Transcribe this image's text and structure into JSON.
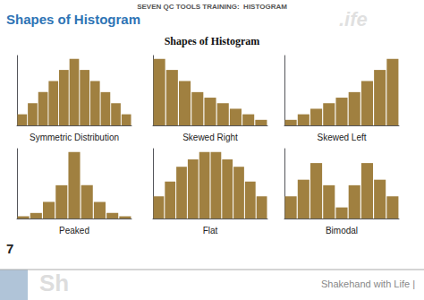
{
  "title": "Shapes of Histogram",
  "subtitle": "Shapes of Histogram",
  "annotations": [
    "SEVEN QC TOOLS TRAINING:  HISTOGRAM",
    ".ife",
    "7",
    "Sh",
    "Shakehand with Life |"
  ],
  "chart_data": [
    {
      "type": "bar",
      "xlabel": "Symmetric Distribution",
      "values": [
        1,
        2,
        3,
        4,
        5,
        6,
        5,
        4,
        3,
        2,
        1
      ],
      "color": "#A08040",
      "ylim": [
        0,
        6.3
      ],
      "grid": false,
      "tick_labels": false
    },
    {
      "type": "bar",
      "xlabel": "Skewed Right",
      "values": [
        6,
        5,
        4,
        3,
        2.5,
        2,
        1.5,
        1,
        0.5
      ],
      "color": "#A08040",
      "ylim": [
        0,
        6.3
      ],
      "grid": false,
      "tick_labels": false
    },
    {
      "type": "bar",
      "xlabel": "Skewed Left",
      "values": [
        0.5,
        1,
        1.5,
        2,
        2.5,
        3,
        4,
        5,
        6
      ],
      "color": "#A08040",
      "ylim": [
        0,
        6.3
      ],
      "grid": false,
      "tick_labels": false
    },
    {
      "type": "bar",
      "xlabel": "Peaked",
      "values": [
        0.2,
        0.5,
        1.5,
        3,
        6,
        3,
        1.5,
        0.5,
        0.2
      ],
      "color": "#A08040",
      "ylim": [
        0,
        6.3
      ],
      "grid": false,
      "tick_labels": false
    },
    {
      "type": "bar",
      "xlabel": "Flat",
      "values": [
        1.5,
        2.5,
        3.5,
        4,
        4.5,
        4.5,
        4,
        3.5,
        2.5,
        1.5
      ],
      "color": "#A08040",
      "ylim": [
        0,
        4.725
      ],
      "grid": false,
      "tick_labels": false
    },
    {
      "type": "bar",
      "xlabel": "Bimodal",
      "values": [
        2,
        3.5,
        5,
        3,
        1,
        3,
        5,
        3.5,
        2
      ],
      "color": "#A08040",
      "ylim": [
        0,
        6.3
      ],
      "grid": false,
      "tick_labels": false
    }
  ]
}
